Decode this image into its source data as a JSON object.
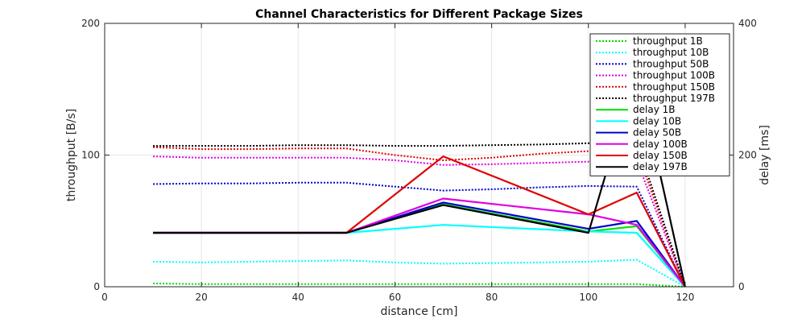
{
  "chart_data": {
    "type": "line",
    "title": "Channel Characteristics for Different Package Sizes",
    "xlabel": "distance [cm]",
    "ylabel_left": "throughput [B/s]",
    "ylabel_right": "delay [ms]",
    "xlim": [
      0,
      130
    ],
    "ylim_left": [
      0,
      200
    ],
    "ylim_right": [
      0,
      400
    ],
    "xticks": [
      0,
      20,
      40,
      60,
      80,
      100,
      120
    ],
    "yticks_left": [
      0,
      100,
      200
    ],
    "yticks_right": [
      0,
      200,
      400
    ],
    "grid": true,
    "legend_position": "top-right",
    "x": [
      10,
      20,
      30,
      40,
      50,
      60,
      70,
      80,
      90,
      100,
      110,
      120
    ],
    "series": [
      {
        "name": "throughput 1B",
        "axis": "left",
        "style": "dotted",
        "color": "#00e000",
        "values": [
          2.5,
          2,
          2,
          2,
          2,
          2,
          2,
          2,
          2,
          2,
          2,
          0
        ]
      },
      {
        "name": "throughput 10B",
        "axis": "left",
        "style": "dotted",
        "color": "#00ffff",
        "values": [
          19,
          18.5,
          19,
          19.5,
          20,
          18.5,
          17.5,
          18,
          18.5,
          19,
          20.5,
          0
        ]
      },
      {
        "name": "throughput 50B",
        "axis": "left",
        "style": "dotted",
        "color": "#0000cc",
        "values": [
          78,
          78.5,
          78.5,
          79,
          79,
          76,
          73,
          74,
          75.5,
          76.5,
          76,
          0
        ]
      },
      {
        "name": "throughput 100B",
        "axis": "left",
        "style": "dotted",
        "color": "#e000e0",
        "values": [
          99,
          98,
          98,
          98,
          98,
          96,
          92.5,
          93,
          94,
          95,
          96,
          0
        ]
      },
      {
        "name": "throughput 150B",
        "axis": "left",
        "style": "dotted",
        "color": "#e00000",
        "values": [
          106,
          104.5,
          104.5,
          105,
          105,
          100,
          96,
          98,
          101,
          103,
          104,
          0
        ]
      },
      {
        "name": "throughput 197B",
        "axis": "left",
        "style": "dotted",
        "color": "#000000",
        "values": [
          107,
          107,
          107,
          107.5,
          107.5,
          107,
          107,
          107.5,
          108,
          109,
          110,
          0
        ]
      },
      {
        "name": "delay 1B",
        "axis": "right",
        "style": "solid",
        "color": "#00e000",
        "values": [
          82,
          82,
          82,
          82,
          82,
          null,
          125,
          null,
          null,
          84,
          92,
          0
        ]
      },
      {
        "name": "delay 10B",
        "axis": "right",
        "style": "solid",
        "color": "#00ffff",
        "values": [
          82,
          82,
          82,
          82,
          82,
          null,
          94,
          null,
          null,
          84,
          82,
          0
        ]
      },
      {
        "name": "delay 50B",
        "axis": "right",
        "style": "solid",
        "color": "#0000cc",
        "values": [
          82,
          82,
          82,
          82,
          82,
          null,
          128,
          null,
          null,
          88,
          100,
          0
        ]
      },
      {
        "name": "delay 100B",
        "axis": "right",
        "style": "solid",
        "color": "#e000e0",
        "values": [
          82,
          82,
          82,
          82,
          82,
          null,
          134,
          null,
          null,
          110,
          94,
          0
        ]
      },
      {
        "name": "delay 150B",
        "axis": "right",
        "style": "solid",
        "color": "#e00000",
        "values": [
          82,
          82,
          82,
          82,
          82,
          null,
          198,
          null,
          null,
          110,
          143,
          0
        ]
      },
      {
        "name": "delay 197B",
        "axis": "right",
        "style": "solid",
        "color": "#000000",
        "values": [
          82,
          82,
          82,
          82,
          82,
          null,
          124,
          null,
          null,
          82,
          330,
          0
        ]
      }
    ]
  }
}
